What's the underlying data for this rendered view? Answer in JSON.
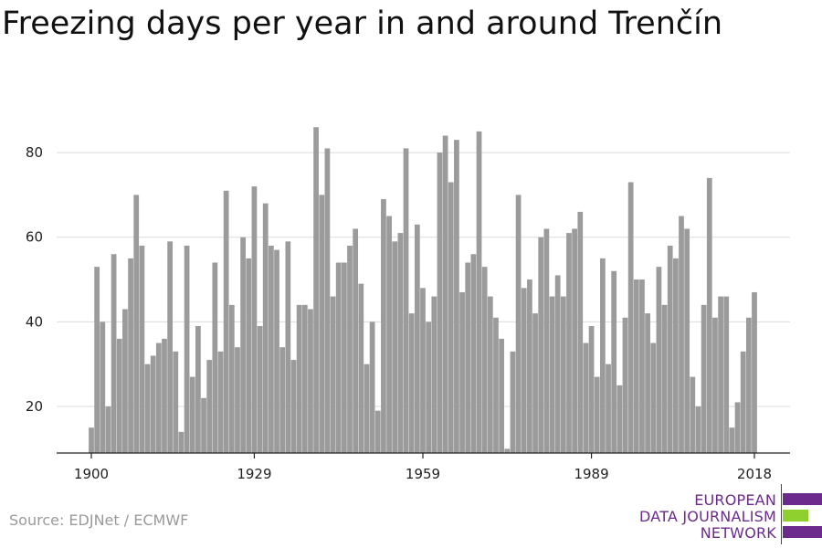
{
  "chart_data": {
    "type": "bar",
    "title": "Freezing days per year in and around Trenčín",
    "xlabel": "",
    "ylabel": "",
    "x_start": 1900,
    "x_end": 2018,
    "xlim": [
      1898.5,
      2005.5
    ],
    "ylim": [
      9,
      88
    ],
    "yticks": [
      20,
      40,
      60,
      80
    ],
    "xticks": [
      1900,
      1929,
      1959,
      1989,
      2018
    ],
    "grid": true,
    "bar_color": "#9b9b9b",
    "values": [
      15,
      53,
      40,
      20,
      56,
      36,
      43,
      55,
      70,
      58,
      30,
      32,
      35,
      36,
      59,
      33,
      14,
      58,
      27,
      39,
      22,
      31,
      54,
      33,
      71,
      44,
      34,
      60,
      55,
      72,
      39,
      68,
      58,
      57,
      34,
      59,
      31,
      44,
      44,
      43,
      86,
      70,
      81,
      46,
      54,
      54,
      58,
      62,
      49,
      30,
      40,
      19,
      69,
      65,
      59,
      61,
      81,
      42,
      63,
      48,
      40,
      46,
      80,
      84,
      73,
      83,
      47,
      54,
      56,
      85,
      53,
      46,
      41,
      36,
      10,
      33,
      70,
      48,
      50,
      42,
      60,
      62,
      46,
      51,
      46,
      61,
      62,
      66,
      35,
      39,
      27,
      55,
      30,
      52,
      25,
      41,
      73,
      50,
      50,
      42,
      35,
      53,
      44,
      58,
      55,
      65,
      62,
      27,
      20,
      44,
      74,
      41,
      46,
      46,
      15,
      21,
      33,
      41,
      47
    ]
  },
  "source": "Source: EDJNet / ECMWF",
  "logo": {
    "line1": "EUROPEAN",
    "line2": "DATA JOURNALISM",
    "line3": "NETWORK",
    "purple": "#6b2a8c",
    "green": "#8fcf2e"
  }
}
